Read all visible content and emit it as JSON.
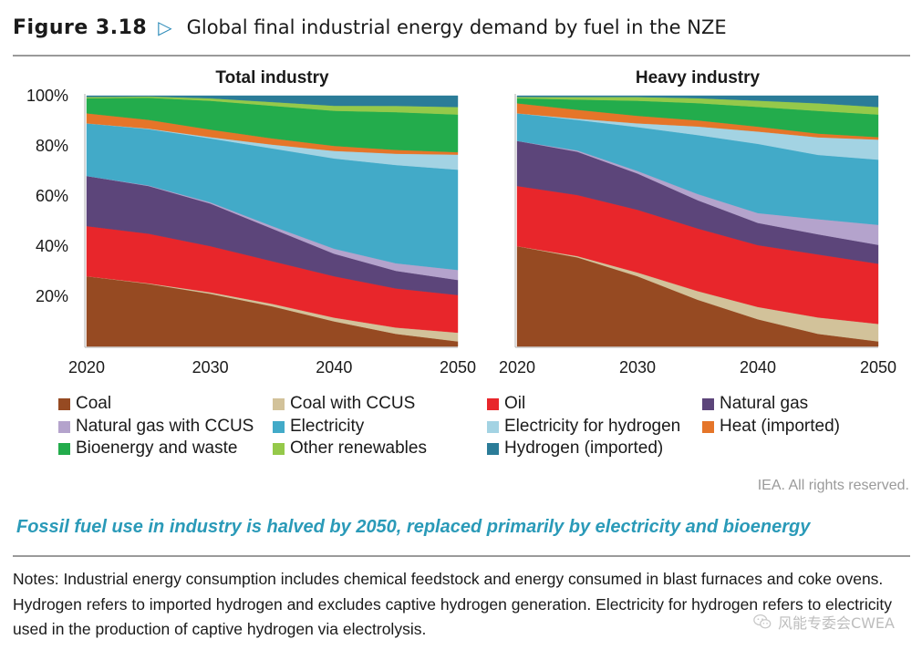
{
  "header": {
    "number": "Figure 3.18",
    "title": "Global final industrial energy demand by fuel in the NZE"
  },
  "colors": {
    "Coal": "#964a22",
    "Coal with CCUS": "#d2c29a",
    "Oil": "#e8262b",
    "Natural gas": "#5c457a",
    "Natural gas with CCUS": "#b4a3cc",
    "Electricity": "#42aac8",
    "Electricity for hydrogen": "#a3d3e3",
    "Heat (imported)": "#e57529",
    "Bioenergy and waste": "#23ac4c",
    "Other renewables": "#95c94a",
    "Hydrogen (imported)": "#2b7c98"
  },
  "legend": [
    "Coal",
    "Coal with CCUS",
    "Oil",
    "Natural gas",
    "Natural gas with CCUS",
    "Electricity",
    "Electricity for hydrogen",
    "Heat (imported)",
    "Bioenergy and waste",
    "Other renewables",
    "Hydrogen (imported)"
  ],
  "chart_data": [
    {
      "type": "area",
      "stacked": true,
      "percent": true,
      "title": "Total industry",
      "x": [
        2020,
        2025,
        2030,
        2035,
        2040,
        2045,
        2050
      ],
      "xticks": [
        "2020",
        "2030",
        "2040",
        "2050"
      ],
      "yticks": [
        "20%",
        "40%",
        "60%",
        "80%",
        "100%"
      ],
      "ylim": [
        0,
        100
      ],
      "series": [
        {
          "name": "Coal",
          "values": [
            28,
            25,
            21,
            16,
            10,
            5,
            2
          ]
        },
        {
          "name": "Coal with CCUS",
          "values": [
            0,
            0.2,
            0.6,
            1,
            1.5,
            2.5,
            3.5
          ]
        },
        {
          "name": "Oil",
          "values": [
            20,
            19.8,
            18.4,
            17,
            16.5,
            15.5,
            15
          ]
        },
        {
          "name": "Natural gas",
          "values": [
            20,
            19,
            17,
            13,
            9,
            7,
            6
          ]
        },
        {
          "name": "Natural gas with CCUS",
          "values": [
            0,
            0.2,
            0.5,
            1,
            2,
            3,
            4
          ]
        },
        {
          "name": "Electricity",
          "values": [
            21,
            22.5,
            25.5,
            31,
            36,
            39,
            40
          ]
        },
        {
          "name": "Electricity for hydrogen",
          "values": [
            0,
            0.2,
            0.5,
            1.5,
            3,
            4.5,
            6
          ]
        },
        {
          "name": "Heat (imported)",
          "values": [
            4,
            3.5,
            3,
            2.5,
            2,
            1.5,
            1
          ]
        },
        {
          "name": "Bioenergy and waste",
          "values": [
            6,
            8.8,
            11.5,
            13,
            14,
            15,
            15
          ]
        },
        {
          "name": "Other renewables",
          "values": [
            0.5,
            0.5,
            1,
            1.5,
            2,
            2.5,
            3
          ]
        },
        {
          "name": "Hydrogen (imported)",
          "values": [
            0.5,
            0.3,
            1,
            2.5,
            4,
            4,
            4.5
          ]
        }
      ]
    },
    {
      "type": "area",
      "stacked": true,
      "percent": true,
      "title": "Heavy industry",
      "x": [
        2020,
        2025,
        2030,
        2035,
        2040,
        2045,
        2050
      ],
      "xticks": [
        "2020",
        "2030",
        "2040",
        "2050"
      ],
      "yticks": [
        "20%",
        "40%",
        "60%",
        "80%",
        "100%"
      ],
      "ylim": [
        0,
        100
      ],
      "series": [
        {
          "name": "Coal",
          "values": [
            40,
            35,
            28,
            19,
            11,
            5,
            2
          ]
        },
        {
          "name": "Coal with CCUS",
          "values": [
            0,
            0.5,
            1.5,
            3.5,
            5,
            6.5,
            7
          ]
        },
        {
          "name": "Oil",
          "values": [
            24,
            24,
            25,
            25.5,
            25,
            25,
            24
          ]
        },
        {
          "name": "Natural gas",
          "values": [
            18,
            17,
            14.5,
            11.5,
            9,
            8,
            7.5
          ]
        },
        {
          "name": "Natural gas with CCUS",
          "values": [
            0,
            0.5,
            1,
            2.5,
            4,
            6,
            8
          ]
        },
        {
          "name": "Electricity",
          "values": [
            11,
            12,
            17.5,
            24,
            28,
            25.5,
            26
          ]
        },
        {
          "name": "Electricity for hydrogen",
          "values": [
            0,
            0.5,
            1.5,
            3.5,
            5,
            7,
            8
          ]
        },
        {
          "name": "Heat (imported)",
          "values": [
            4,
            3.5,
            3,
            2.5,
            2,
            1.5,
            1
          ]
        },
        {
          "name": "Bioenergy and waste",
          "values": [
            2,
            4,
            6,
            7,
            8,
            9,
            9
          ]
        },
        {
          "name": "Other renewables",
          "values": [
            0.5,
            1,
            1.5,
            2,
            2.5,
            3,
            3
          ]
        },
        {
          "name": "Hydrogen (imported)",
          "values": [
            0.5,
            0.5,
            0.5,
            1,
            2,
            3,
            4.5
          ]
        }
      ]
    }
  ],
  "rights": "IEA. All rights reserved.",
  "caption": "Fossil fuel use in industry is halved by 2050, replaced primarily by electricity and bioenergy",
  "notes": "Notes: Industrial energy consumption includes chemical feedstock and energy consumed in blast furnaces and coke ovens. Hydrogen refers to imported hydrogen and excludes captive hydrogen generation. Electricity for hydrogen refers to electricity used in the production of captive hydrogen via electrolysis.",
  "watermark": "风能专委会CWEA"
}
